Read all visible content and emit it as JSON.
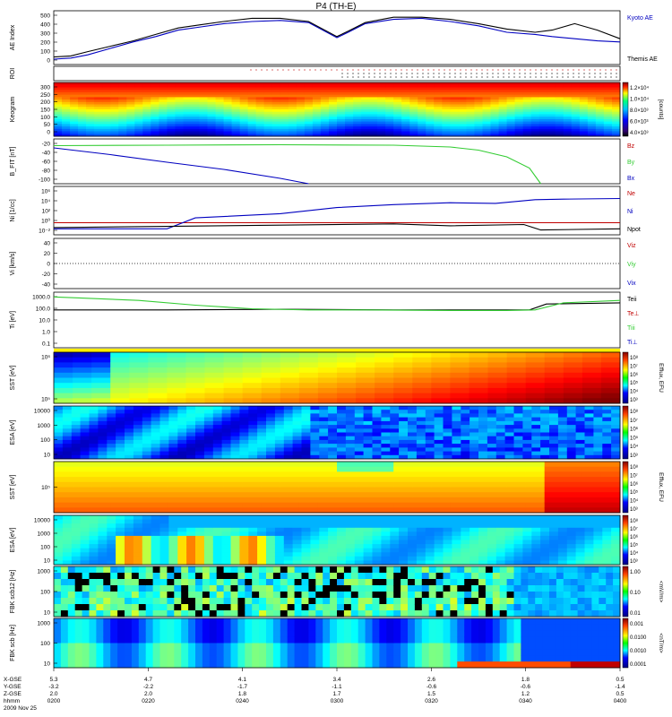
{
  "title": "P4 (TH-E)",
  "colors": {
    "red": "#c00000",
    "green": "#33cc33",
    "blue": "#0000c0",
    "black": "#000000"
  },
  "chart_data": [
    {
      "id": "ae",
      "type": "line",
      "ylabel": "AE Index",
      "ylim": [
        0,
        500
      ],
      "yticks": [
        "0",
        "100",
        "200",
        "300",
        "400",
        "500"
      ],
      "series": [
        {
          "name": "Kyoto AE",
          "color": "#0000c0",
          "x": [
            0,
            0.03,
            0.06,
            0.1,
            0.14,
            0.18,
            0.22,
            0.26,
            0.3,
            0.35,
            0.4,
            0.45,
            0.5,
            0.52,
            0.55,
            0.6,
            0.65,
            0.7,
            0.75,
            0.8,
            0.85,
            0.88,
            0.92,
            0.96,
            1.0
          ],
          "values": [
            50,
            60,
            90,
            150,
            210,
            260,
            320,
            350,
            380,
            400,
            410,
            390,
            250,
            300,
            380,
            420,
            430,
            400,
            360,
            300,
            280,
            260,
            240,
            220,
            210
          ]
        },
        {
          "name": "Themis AE",
          "color": "#000000",
          "x": [
            0,
            0.03,
            0.06,
            0.1,
            0.14,
            0.18,
            0.22,
            0.26,
            0.3,
            0.35,
            0.4,
            0.45,
            0.5,
            0.52,
            0.55,
            0.6,
            0.65,
            0.7,
            0.75,
            0.8,
            0.85,
            0.88,
            0.92,
            0.96,
            1.0
          ],
          "values": [
            70,
            80,
            120,
            170,
            220,
            280,
            340,
            370,
            400,
            430,
            430,
            400,
            260,
            310,
            390,
            440,
            440,
            420,
            380,
            330,
            300,
            320,
            380,
            320,
            240
          ]
        }
      ]
    },
    {
      "id": "roi",
      "type": "line",
      "ylabel": "ROI"
    },
    {
      "id": "keogram",
      "type": "heatmap",
      "ylabel": "Keogram",
      "ylim": [
        0,
        300
      ],
      "yticks": [
        "0",
        "50",
        "100",
        "150",
        "200",
        "250",
        "300"
      ],
      "colorbar": {
        "label": "[counts]",
        "ticks": [
          "1.2×10⁴",
          "1.0×10⁴",
          "8.0×10³",
          "6.0×10³",
          "4.0×10³"
        ]
      }
    },
    {
      "id": "bfit",
      "type": "line",
      "ylabel": "B_FIT [nT]",
      "ylim": [
        -100,
        0
      ],
      "yticks": [
        "-20",
        "-40",
        "-60",
        "-80",
        "-100"
      ],
      "series": [
        {
          "name": "Bz",
          "color": "#c00000",
          "x": [],
          "values": []
        },
        {
          "name": "By",
          "color": "#33cc33",
          "x": [
            0,
            0.2,
            0.4,
            0.6,
            0.7,
            0.75,
            0.8,
            0.84,
            0.86
          ],
          "values": [
            -15,
            -14,
            -13,
            -14,
            -18,
            -25,
            -40,
            -65,
            -100
          ]
        },
        {
          "name": "Bx",
          "color": "#0000c0",
          "x": [
            0,
            0.1,
            0.2,
            0.3,
            0.4,
            0.45
          ],
          "values": [
            -20,
            -35,
            -52,
            -68,
            -88,
            -100
          ]
        }
      ]
    },
    {
      "id": "ni",
      "type": "line",
      "ylabel": "Ni [1/cc]",
      "ylog": true,
      "yticks": [
        "10⁻²",
        "10⁰",
        "10²",
        "10⁴",
        "10⁶"
      ],
      "series": [
        {
          "name": "Ne",
          "color": "#c00000"
        },
        {
          "name": "Ni",
          "color": "#0000c0",
          "x": [
            0,
            0.2,
            0.25,
            0.4,
            0.5,
            0.6,
            0.7,
            0.78,
            0.85,
            0.9,
            1.0
          ],
          "values": [
            -1,
            -1,
            0.8,
            1.5,
            2.5,
            3.0,
            3.3,
            3.2,
            3.8,
            3.9,
            4.0
          ]
        },
        {
          "name": "Npot",
          "color": "#000000",
          "x": [
            0,
            0.2,
            0.4,
            0.6,
            0.7,
            0.83,
            0.86,
            1.0
          ],
          "values": [
            -0.8,
            -0.6,
            -0.4,
            -0.2,
            -0.5,
            -0.3,
            -1.2,
            -1.0
          ]
        }
      ]
    },
    {
      "id": "vi",
      "type": "line",
      "ylabel": "Vi [km/s]",
      "ylim": [
        -50,
        50
      ],
      "yticks": [
        "40",
        "20",
        "0",
        "-20",
        "-40"
      ],
      "series": [
        {
          "name": "Viz",
          "color": "#c00000"
        },
        {
          "name": "Viy",
          "color": "#33cc33"
        },
        {
          "name": "Vix",
          "color": "#0000c0"
        }
      ]
    },
    {
      "id": "ti",
      "type": "line",
      "ylabel": "Ti [eV]",
      "ylog": true,
      "yticks": [
        "1000.0",
        "100.0",
        "10.0",
        "1.0",
        "0.1"
      ],
      "series": [
        {
          "name": "Teii",
          "color": "#000000",
          "x": [
            0,
            0.2,
            0.4,
            0.6,
            0.84,
            0.87,
            1.0
          ],
          "values": [
            2.0,
            2.0,
            2.05,
            2.0,
            2.0,
            2.5,
            2.6
          ]
        },
        {
          "name": "Te⊥",
          "color": "#c00000"
        },
        {
          "name": "Tiii",
          "color": "#33cc33",
          "x": [
            0,
            0.05,
            0.15,
            0.25,
            0.35,
            0.45,
            0.55,
            0.7,
            0.8,
            0.85,
            0.9,
            1.0
          ],
          "values": [
            3.1,
            3.0,
            2.8,
            2.4,
            2.1,
            2.0,
            2.0,
            1.95,
            1.95,
            2.0,
            2.6,
            2.8
          ]
        },
        {
          "name": "Ti⊥",
          "color": "#0000c0"
        }
      ]
    },
    {
      "id": "sst1",
      "type": "heatmap",
      "ylabel": "SST [eV]",
      "yticks": [
        "10⁶",
        "10⁵"
      ],
      "colorbar_label": "Efflux, EFU",
      "cb_ticks": [
        "10⁸",
        "10⁷",
        "10⁶",
        "10⁵",
        "10⁴",
        "10³"
      ]
    },
    {
      "id": "esa1",
      "type": "heatmap",
      "ylabel": "ESA [eV]",
      "yticks": [
        "10000",
        "1000",
        "100",
        "10"
      ],
      "cb_ticks": [
        "10⁸",
        "10⁷",
        "10⁶",
        "10⁵",
        "10⁴",
        "10³"
      ]
    },
    {
      "id": "sst2",
      "type": "heatmap",
      "ylabel": "SST [eV]",
      "yticks": [
        "10⁵"
      ],
      "colorbar_label": "Efflux, EFU",
      "cb_ticks": [
        "10⁸",
        "10⁷",
        "10⁶",
        "10⁵",
        "10⁴",
        "10³"
      ]
    },
    {
      "id": "esa2",
      "type": "heatmap",
      "ylabel": "ESA [eV]",
      "yticks": [
        "10000",
        "1000",
        "100",
        "10"
      ],
      "cb_ticks": [
        "10⁸",
        "10⁷",
        "10⁶",
        "10⁵",
        "10⁴",
        "10³"
      ]
    },
    {
      "id": "fbk1",
      "type": "heatmap",
      "ylabel": "FBK scb12 [Hz]",
      "yticks": [
        "1000",
        "100",
        "10"
      ],
      "colorbar_label": "<mV/m>",
      "cb_ticks": [
        "1.00",
        "0.10",
        "0.01"
      ]
    },
    {
      "id": "fbk2",
      "type": "heatmap",
      "ylabel": "FBK scb [Hz]",
      "yticks": [
        "1000",
        "100",
        "10"
      ],
      "colorbar_label": "<nT/m>",
      "cb_ticks": [
        "0.001",
        "0.0100",
        "0.0010",
        "0.0001"
      ]
    }
  ],
  "xaxis": {
    "row_labels": [
      "X-GSE",
      "Y-GSE",
      "Z-GSE",
      "hhmm",
      "2009 Nov 25"
    ],
    "ticks": [
      {
        "x": 0.0,
        "vals": [
          "5.3",
          "-3.2",
          "2.0",
          "0200"
        ]
      },
      {
        "x": 0.167,
        "vals": [
          "4.7",
          "-2.2",
          "2.0",
          "0220"
        ]
      },
      {
        "x": 0.333,
        "vals": [
          "4.1",
          "-1.7",
          "1.8",
          "0240"
        ]
      },
      {
        "x": 0.5,
        "vals": [
          "3.4",
          "-1.1",
          "1.7",
          "0300"
        ]
      },
      {
        "x": 0.667,
        "vals": [
          "2.6",
          "-0.6",
          "1.5",
          "0320"
        ]
      },
      {
        "x": 0.833,
        "vals": [
          "1.8",
          "-0.6",
          "1.2",
          "0340"
        ]
      },
      {
        "x": 1.0,
        "vals": [
          "0.5",
          "-1.4",
          "0.5",
          "0400"
        ]
      }
    ]
  }
}
